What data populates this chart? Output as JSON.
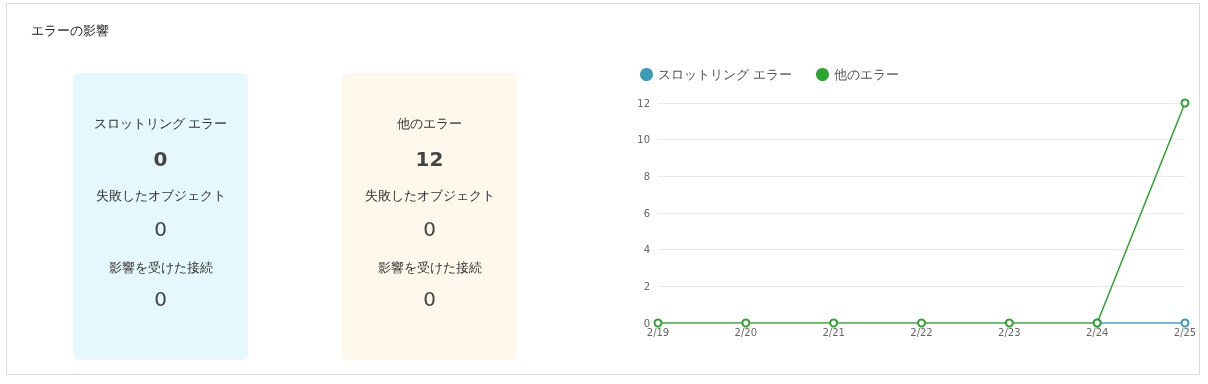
{
  "chart_data": [
    {
      "type": "other",
      "title": "エラーの影響"
    },
    {
      "type": "other",
      "title": "スロットリング エラー",
      "annotations": [
        "0",
        "失敗したオブジェクト",
        "0",
        "影響を受けた接続",
        "0"
      ]
    },
    {
      "type": "other",
      "title": "他のエラー",
      "annotations": [
        "12",
        "失敗したオブジェクト",
        "0",
        "影響を受けた接続",
        "0"
      ]
    },
    {
      "type": "line",
      "categories": [
        "2/19",
        "2/20",
        "2/21",
        "2/22",
        "2/23",
        "2/24",
        "2/25"
      ],
      "series": [
        {
          "name": "スロットリング エラー",
          "color": "#3a9cb8",
          "values": [
            null,
            null,
            null,
            null,
            null,
            0,
            0
          ]
        },
        {
          "name": "他のエラー",
          "color": "#2ca52c",
          "values": [
            0,
            0,
            0,
            0,
            0,
            0,
            12
          ]
        }
      ],
      "ylim": [
        0,
        12
      ],
      "yticks": [
        0,
        2,
        4,
        6,
        8,
        10,
        12
      ],
      "grid": "y",
      "legend": "top left",
      "marker": "circle",
      "line_style": "solid"
    }
  ]
}
